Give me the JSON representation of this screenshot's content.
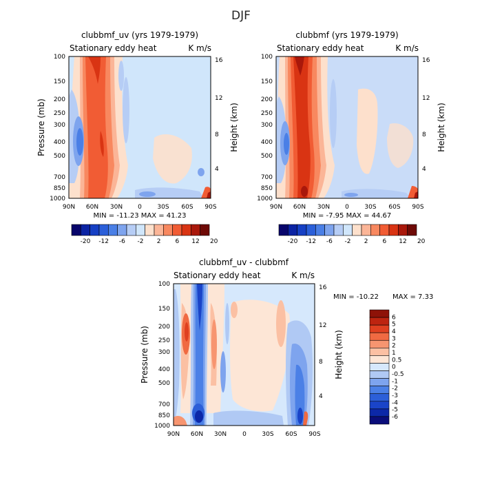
{
  "suptitle": "DJF",
  "panel_fills": [
    "#d0e6fb",
    "#c9dcf8",
    "#d6e8fc"
  ],
  "chart_data": [
    {
      "type": "heatmap",
      "title": "clubbmf_uv (yrs 1979-1979)",
      "subtitle_left": "Stationary eddy heat",
      "subtitle_right": "K m/s",
      "xlabel": "",
      "ylabel": "Pressure (mb)",
      "ylabel_right": "Height (km)",
      "x_ticks": [
        "90N",
        "60N",
        "30N",
        "0",
        "30S",
        "60S",
        "90S"
      ],
      "y_ticks": [
        "100",
        "150",
        "200",
        "250",
        "300",
        "400",
        "500",
        "700",
        "850",
        "1000"
      ],
      "y_ticks_right": [
        "16",
        "12",
        "8",
        "4"
      ],
      "stats": "MIN = -11.23   MAX = 41.23",
      "colorbar": {
        "orientation": "horizontal",
        "colors": [
          "#08056b",
          "#0b23a3",
          "#1640c4",
          "#2b5fd9",
          "#4a7fe6",
          "#7ea4ee",
          "#b6cdf5",
          "#d0e6fb",
          "#fde0cc",
          "#fbb597",
          "#f8885f",
          "#f15c34",
          "#d93413",
          "#a9180b",
          "#6e0a06"
        ],
        "labels": [
          "-20",
          "-12",
          "-6",
          "-2",
          "2",
          "6",
          "12",
          "20"
        ]
      }
    },
    {
      "type": "heatmap",
      "title": "clubbmf (yrs 1979-1979)",
      "subtitle_left": "Stationary eddy heat",
      "subtitle_right": "K m/s",
      "xlabel": "",
      "ylabel": "",
      "ylabel_right": "Height (km)",
      "x_ticks": [
        "90N",
        "60N",
        "30N",
        "0",
        "30S",
        "60S",
        "90S"
      ],
      "y_ticks": [
        "100",
        "150",
        "200",
        "250",
        "300",
        "400",
        "500",
        "700",
        "850",
        "1000"
      ],
      "y_ticks_right": [
        "16",
        "12",
        "8",
        "4"
      ],
      "stats": "MIN = -7.95   MAX = 44.67",
      "colorbar": {
        "orientation": "horizontal",
        "colors": [
          "#08056b",
          "#0b23a3",
          "#1640c4",
          "#2b5fd9",
          "#4a7fe6",
          "#7ea4ee",
          "#b6cdf5",
          "#d0e6fb",
          "#fde0cc",
          "#fbb597",
          "#f8885f",
          "#f15c34",
          "#d93413",
          "#a9180b",
          "#6e0a06"
        ],
        "labels": [
          "-20",
          "-12",
          "-6",
          "-2",
          "2",
          "6",
          "12",
          "20"
        ]
      }
    },
    {
      "type": "heatmap",
      "title": "clubbmf_uv - clubbmf",
      "subtitle_left": "Stationary eddy heat",
      "subtitle_right": "K m/s",
      "xlabel": "",
      "ylabel": "Pressure (mb)",
      "ylabel_right": "Height (km)",
      "x_ticks": [
        "90N",
        "60N",
        "30N",
        "0",
        "30S",
        "60S",
        "90S"
      ],
      "y_ticks": [
        "100",
        "150",
        "200",
        "250",
        "300",
        "400",
        "500",
        "700",
        "850",
        "1000"
      ],
      "y_ticks_right": [
        "16",
        "12",
        "8",
        "4"
      ],
      "stats_min": "MIN = -10.22",
      "stats_max": "MAX =    7.33",
      "colorbar": {
        "orientation": "vertical",
        "colors": [
          "#0a0d7a",
          "#0c28a8",
          "#1a44c8",
          "#2c5fd8",
          "#4b80e6",
          "#7ea4ee",
          "#b0c9f4",
          "#d6e8fc",
          "#fde6d6",
          "#fbc0a3",
          "#f79570",
          "#f06a42",
          "#df4020",
          "#bd2410",
          "#8e1208"
        ],
        "labels": [
          "-6",
          "-5",
          "-4",
          "-3",
          "-2",
          "-1",
          "-0.5",
          "0",
          "0.5",
          "1",
          "2",
          "3",
          "4",
          "5",
          "6"
        ]
      }
    }
  ]
}
